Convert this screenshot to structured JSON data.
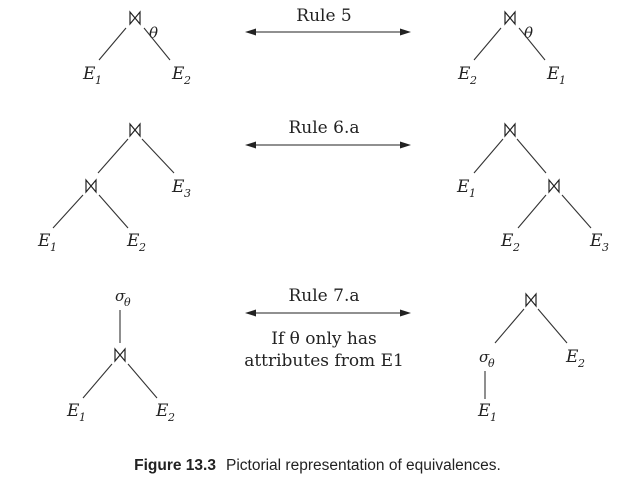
{
  "symbols": {
    "join": "⋈",
    "theta": "θ",
    "sigma": "σ"
  },
  "relations": {
    "E1": {
      "letter": "E",
      "sub": "1"
    },
    "E2": {
      "letter": "E",
      "sub": "2"
    },
    "E3": {
      "letter": "E",
      "sub": "3"
    }
  },
  "rules": [
    {
      "label": "Rule 5"
    },
    {
      "label": "Rule 6.a"
    },
    {
      "label": "Rule 7.a",
      "condition_line1": "If θ only has",
      "condition_line2": "attributes from E1"
    }
  ],
  "caption": {
    "number": "Figure 13.3",
    "text": "Pictorial representation of equivalences."
  },
  "colors": {
    "ink": "#222222",
    "background": "#ffffff"
  }
}
